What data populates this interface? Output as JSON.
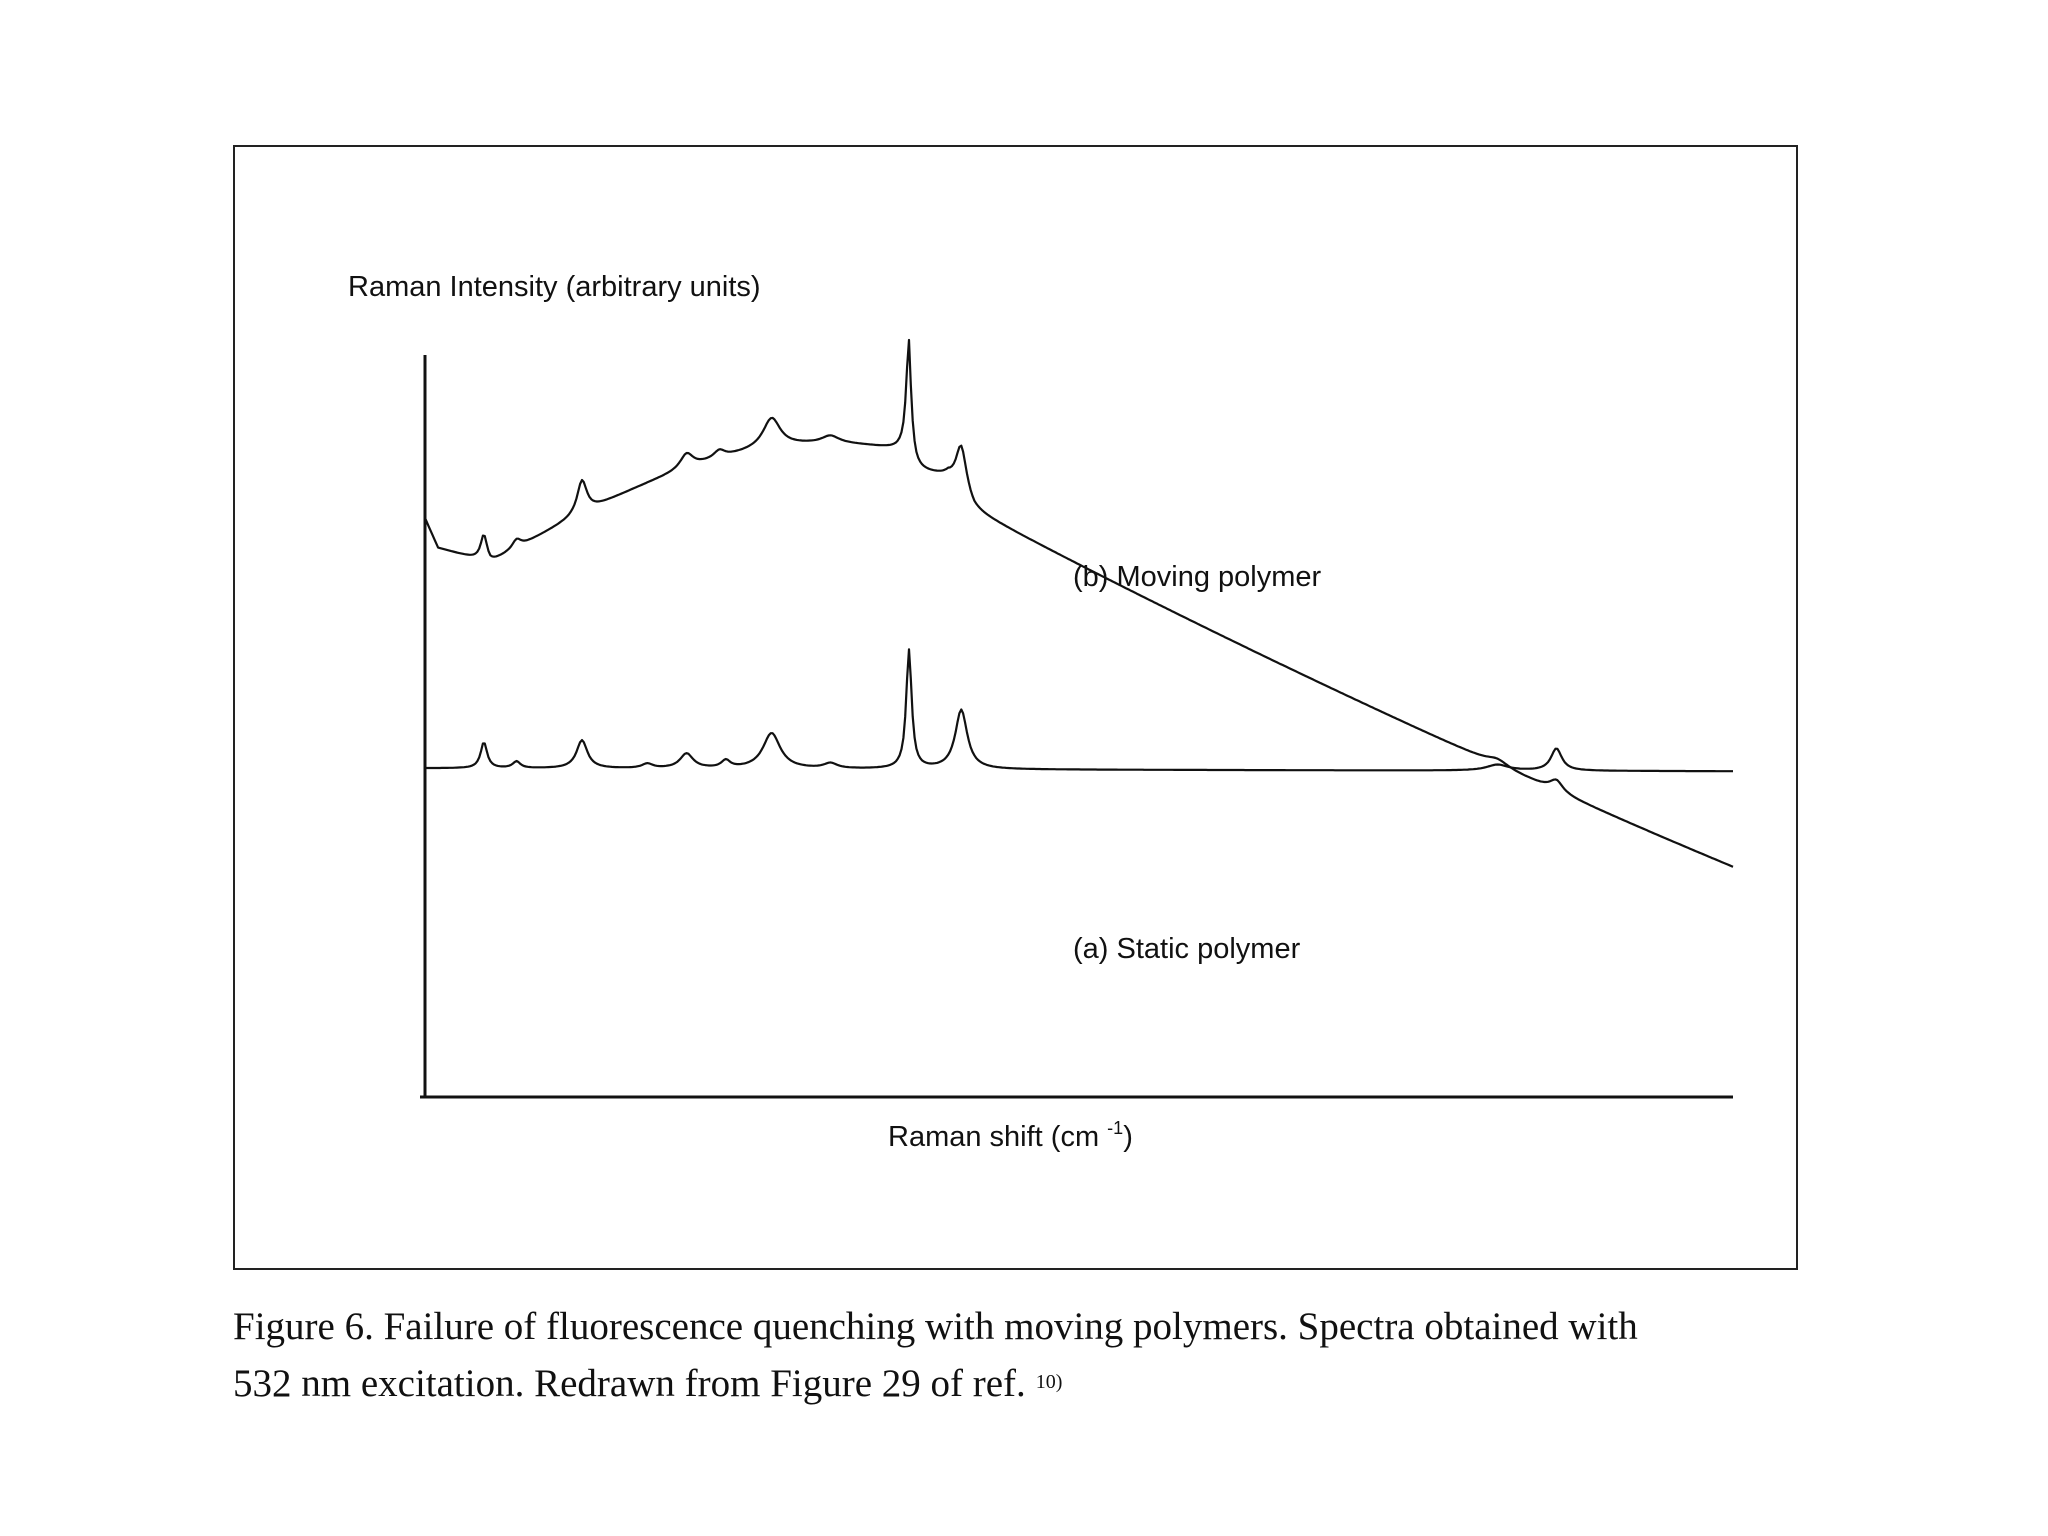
{
  "chart_data": {
    "type": "line",
    "ylabel": "Raman Intensity (arbitrary units)",
    "xlabel_main": "Raman shift (cm",
    "xlabel_sup": "-1",
    "xlabel_close": ")",
    "x_range": [
      0,
      100
    ],
    "y_range": [
      0,
      100
    ],
    "grid": false,
    "legend": "inline labels beside curves",
    "series": [
      {
        "name": "(b) Moving polymer",
        "peaks": [
          {
            "x": 4.5,
            "h": 3.5,
            "w": 0.3
          },
          {
            "x": 7.0,
            "h": 1.2,
            "w": 0.4
          },
          {
            "x": 12.0,
            "h": 4.5,
            "w": 0.45
          },
          {
            "x": 20.0,
            "h": 2.0,
            "w": 0.6
          },
          {
            "x": 22.5,
            "h": 1.0,
            "w": 0.5
          },
          {
            "x": 26.5,
            "h": 4.0,
            "w": 0.8
          },
          {
            "x": 31.0,
            "h": 1.0,
            "w": 0.8
          },
          {
            "x": 37.0,
            "h": 15.0,
            "w": 0.25
          },
          {
            "x": 41.0,
            "h": 6.5,
            "w": 0.5
          },
          {
            "x": 82.0,
            "h": 0.8,
            "w": 1.0
          },
          {
            "x": 86.5,
            "h": 1.5,
            "w": 0.6
          }
        ]
      },
      {
        "name": "(a) Static polymer",
        "peaks": [
          {
            "x": 4.5,
            "h": 3.5,
            "w": 0.3
          },
          {
            "x": 7.0,
            "h": 0.9,
            "w": 0.35
          },
          {
            "x": 12.0,
            "h": 3.8,
            "w": 0.5
          },
          {
            "x": 17.0,
            "h": 0.6,
            "w": 0.5
          },
          {
            "x": 20.0,
            "h": 2.0,
            "w": 0.6
          },
          {
            "x": 23.0,
            "h": 1.0,
            "w": 0.4
          },
          {
            "x": 26.5,
            "h": 4.8,
            "w": 0.8
          },
          {
            "x": 31.0,
            "h": 0.7,
            "w": 0.6
          },
          {
            "x": 37.0,
            "h": 16.0,
            "w": 0.25
          },
          {
            "x": 41.0,
            "h": 8.0,
            "w": 0.55
          },
          {
            "x": 82.0,
            "h": 0.8,
            "w": 1.0
          },
          {
            "x": 86.5,
            "h": 3.0,
            "w": 0.5
          }
        ]
      }
    ]
  },
  "caption": {
    "line1": "Figure 6. Failure of fluorescence quenching with moving polymers. Spectra obtained with",
    "line2": "532 nm excitation. Redrawn from Figure 29 of ref.",
    "ref": "10)"
  }
}
